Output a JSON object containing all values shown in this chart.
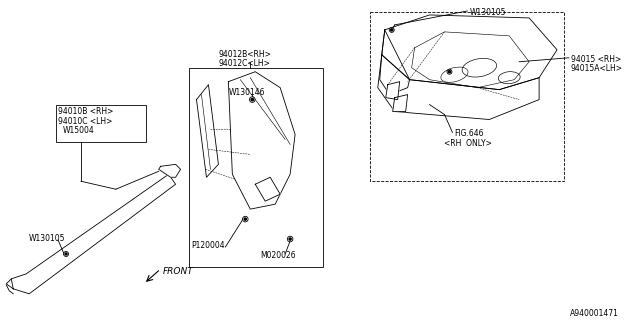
{
  "bg_color": "#ffffff",
  "line_color": "#000000",
  "figsize": [
    6.4,
    3.2
  ],
  "dpi": 100,
  "watermark": "A940001471",
  "labels": {
    "front": "FRONT",
    "label1a": "94012B<RH>",
    "label1b": "94012C<LH>",
    "label2a": "94010B <RH>",
    "label2b": "94010C <LH>",
    "label3": "W130146",
    "label4": "W15004",
    "label5": "W130105",
    "label6": "P120004",
    "label7": "M020026",
    "label8": "W130105",
    "label9a": "94015 <RH>",
    "label9b": "94015A<LH>",
    "label10a": "FIG.646",
    "label10b": "<RH  ONLY>"
  }
}
